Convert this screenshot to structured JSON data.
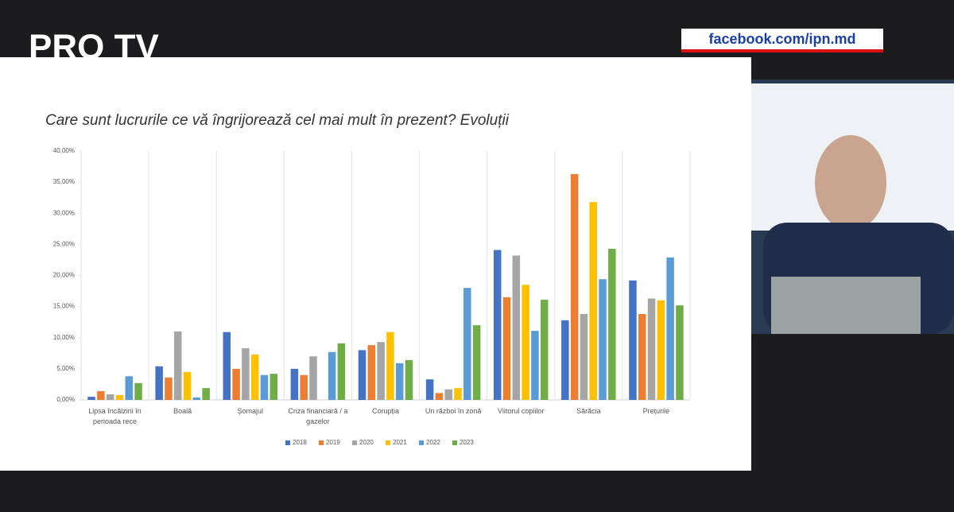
{
  "overlay": {
    "channel": "PRO TV",
    "link": "facebook.com/ipn.md"
  },
  "chart_data": {
    "type": "bar",
    "title": "Care sunt lucrurile ce vă îngrijorează cel mai mult în prezent? Evoluții",
    "categories": [
      "Lipsa încălzirii în perioada rece",
      "Boală",
      "Șomajul",
      "Criza financiară / a gazelor",
      "Corupția",
      "Un război în zonă",
      "Viitorul copiilor",
      "Sărăcia",
      "Prețurile"
    ],
    "series": [
      {
        "name": "2018",
        "color": "#4472c4",
        "values": [
          0.5,
          5.4,
          10.9,
          5.0,
          8.0,
          3.3,
          24.1,
          12.8,
          19.2
        ]
      },
      {
        "name": "2019",
        "color": "#ed7d31",
        "values": [
          1.4,
          3.6,
          5.0,
          4.0,
          8.8,
          1.1,
          16.5,
          36.3,
          13.8
        ]
      },
      {
        "name": "2020",
        "color": "#a5a5a5",
        "values": [
          0.9,
          11.0,
          8.3,
          7.0,
          9.3,
          1.7,
          23.2,
          13.8,
          16.3
        ]
      },
      {
        "name": "2021",
        "color": "#ffc000",
        "values": [
          0.8,
          4.5,
          7.3,
          null,
          10.9,
          1.9,
          18.5,
          31.8,
          16.0
        ]
      },
      {
        "name": "2022",
        "color": "#5b9bd5",
        "values": [
          3.8,
          0.4,
          4.0,
          7.7,
          5.9,
          18.0,
          11.1,
          19.4,
          22.9
        ]
      },
      {
        "name": "2023",
        "color": "#70ad47",
        "values": [
          2.7,
          1.9,
          4.2,
          9.1,
          6.4,
          12.0,
          16.1,
          24.3,
          15.2
        ]
      }
    ],
    "ylim": [
      0,
      40
    ],
    "yticks": [
      {
        "value": 0,
        "label": "0,00%"
      },
      {
        "value": 5,
        "label": "5,00%"
      },
      {
        "value": 10,
        "label": "10,00%"
      },
      {
        "value": 15,
        "label": "15,00%"
      },
      {
        "value": 20,
        "label": "20,00%"
      },
      {
        "value": 25,
        "label": "25,00%"
      },
      {
        "value": 30,
        "label": "30,00%"
      },
      {
        "value": 35,
        "label": "35,00%"
      },
      {
        "value": 40,
        "label": "40,00%"
      }
    ],
    "legend": "bottom"
  }
}
